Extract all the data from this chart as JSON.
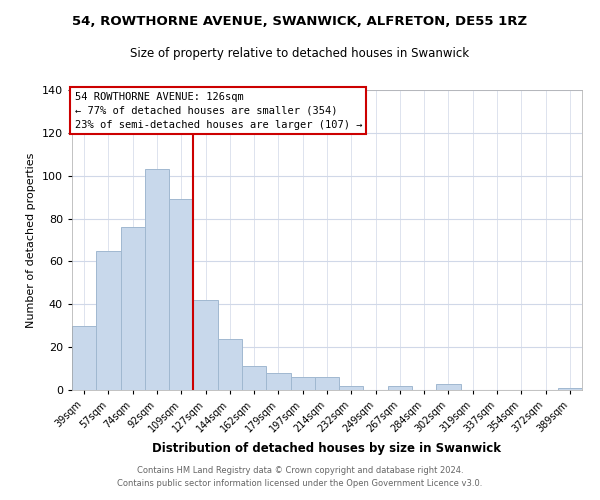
{
  "title": "54, ROWTHORNE AVENUE, SWANWICK, ALFRETON, DE55 1RZ",
  "subtitle": "Size of property relative to detached houses in Swanwick",
  "xlabel": "Distribution of detached houses by size in Swanwick",
  "ylabel": "Number of detached properties",
  "bar_labels": [
    "39sqm",
    "57sqm",
    "74sqm",
    "92sqm",
    "109sqm",
    "127sqm",
    "144sqm",
    "162sqm",
    "179sqm",
    "197sqm",
    "214sqm",
    "232sqm",
    "249sqm",
    "267sqm",
    "284sqm",
    "302sqm",
    "319sqm",
    "337sqm",
    "354sqm",
    "372sqm",
    "389sqm"
  ],
  "bar_values": [
    30,
    65,
    76,
    103,
    89,
    42,
    24,
    11,
    8,
    6,
    6,
    2,
    0,
    2,
    0,
    3,
    0,
    0,
    0,
    0,
    1
  ],
  "bar_color": "#c8d8eb",
  "bar_edge_color": "#a0b8d0",
  "ylim": [
    0,
    140
  ],
  "yticks": [
    0,
    20,
    40,
    60,
    80,
    100,
    120,
    140
  ],
  "vline_color": "#cc0000",
  "annotation_title": "54 ROWTHORNE AVENUE: 126sqm",
  "annotation_line1": "← 77% of detached houses are smaller (354)",
  "annotation_line2": "23% of semi-detached houses are larger (107) →",
  "annotation_box_color": "#ffffff",
  "annotation_box_edge": "#cc0000",
  "footer_line1": "Contains HM Land Registry data © Crown copyright and database right 2024.",
  "footer_line2": "Contains public sector information licensed under the Open Government Licence v3.0.",
  "background_color": "#ffffff",
  "grid_color": "#d0d8e8"
}
